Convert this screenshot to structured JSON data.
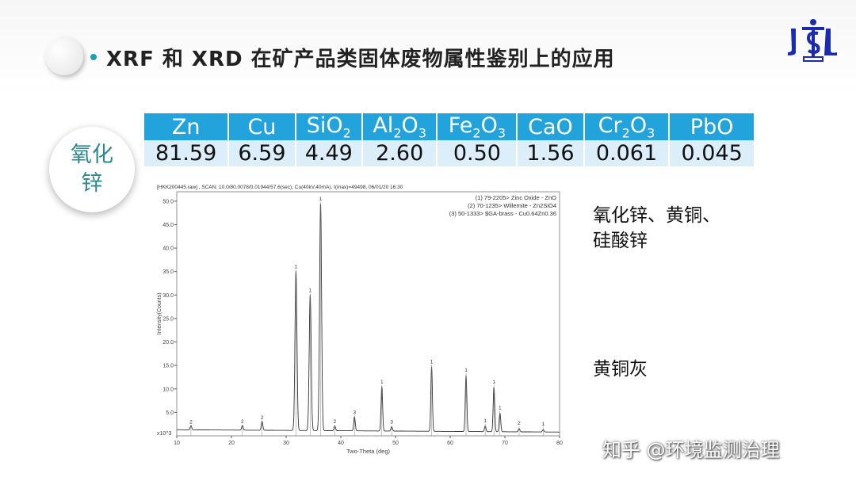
{
  "title": "XRF 和 XRD 在矿产品类固体废物属性鉴别上的应用",
  "logo_text": "JSL",
  "sample_label": [
    "氧化",
    "锌"
  ],
  "table": {
    "headers": [
      [
        "Zn",
        ""
      ],
      [
        "Cu",
        ""
      ],
      [
        "SiO",
        "2"
      ],
      [
        "Al",
        "2",
        "O",
        "3"
      ],
      [
        "Fe",
        "2",
        "O",
        "3"
      ],
      [
        "CaO",
        ""
      ],
      [
        "Cr",
        "2",
        "O",
        "3"
      ],
      [
        "PbO",
        ""
      ]
    ],
    "values": [
      "81.59",
      "6.59",
      "4.49",
      "2.60",
      "0.50",
      "1.56",
      "0.061",
      "0.045"
    ]
  },
  "side_notes": {
    "top": [
      "氧化锌、黄铜、",
      "硅酸锌"
    ],
    "bottom": "黄铜灰"
  },
  "watermark": "知乎 @环境监测治理",
  "chart_data": {
    "type": "line",
    "header": "[HKK200445.raw] , SCAN: 10.0/80.0078/0.01944/57.6(sec), Cu(40kV,40mA), I(max)=49498, 06/01/20 16:30",
    "legend": [
      "(1) 79-2205> Zinc Oxide - ZnO",
      "(2) 70-1235> Willemite - Zn2SiO4",
      "(3) 50-1333> $GA-brass - Cu0.64Zn0.36"
    ],
    "legend_position": "top-right",
    "xlabel": "Two-Theta (deg)",
    "ylabel": "Intensity(Counts)",
    "y_unit": "x10^3",
    "xlim": [
      10,
      80
    ],
    "ylim": [
      0,
      52
    ],
    "xticks": [
      "10",
      "20",
      "30",
      "40",
      "50",
      "60",
      "70",
      "80"
    ],
    "yticks": [
      "5.0",
      "10.0",
      "15.0",
      "20.0",
      "25.0",
      "30.0",
      "35.0",
      "40.0",
      "45.0",
      "50.0"
    ],
    "peaks": [
      {
        "x": 12.6,
        "y": 1.9,
        "phase": "2"
      },
      {
        "x": 22.0,
        "y": 2.0,
        "phase": "2"
      },
      {
        "x": 25.6,
        "y": 2.9,
        "phase": "2"
      },
      {
        "x": 31.8,
        "y": 35,
        "phase": "1"
      },
      {
        "x": 34.4,
        "y": 30,
        "phase": "1"
      },
      {
        "x": 36.3,
        "y": 49.5,
        "phase": "1"
      },
      {
        "x": 38.9,
        "y": 2.0,
        "phase": "2"
      },
      {
        "x": 42.5,
        "y": 4.0,
        "phase": "3"
      },
      {
        "x": 47.5,
        "y": 10.5,
        "phase": "1"
      },
      {
        "x": 49.3,
        "y": 1.9,
        "phase": "3"
      },
      {
        "x": 56.6,
        "y": 14.8,
        "phase": "1"
      },
      {
        "x": 62.9,
        "y": 13,
        "phase": "1"
      },
      {
        "x": 66.4,
        "y": 2.2,
        "phase": "1"
      },
      {
        "x": 68.0,
        "y": 10.5,
        "phase": "1"
      },
      {
        "x": 69.1,
        "y": 5.0,
        "phase": "1"
      },
      {
        "x": 72.6,
        "y": 1.7,
        "phase": "2"
      },
      {
        "x": 77.0,
        "y": 1.5,
        "phase": "1"
      }
    ],
    "background": {
      "start": 1.3,
      "end": 0.8
    }
  }
}
